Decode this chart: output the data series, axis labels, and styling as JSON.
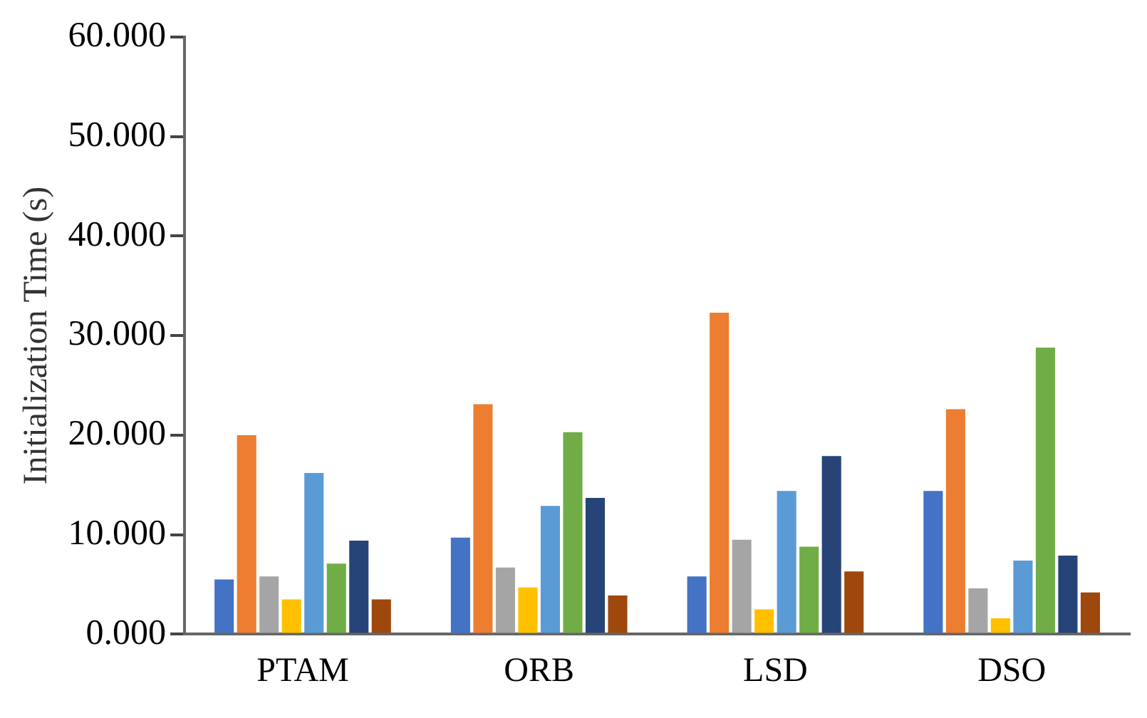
{
  "chart_data": {
    "type": "bar",
    "ylabel": "Initialization Time (s)",
    "categories": [
      "PTAM",
      "ORB",
      "LSD",
      "DSO"
    ],
    "series": [
      {
        "color": "#4472c4",
        "values": [
          5.5,
          9.7,
          5.8,
          14.4
        ]
      },
      {
        "color": "#ed7d31",
        "values": [
          20.0,
          23.1,
          32.3,
          22.6
        ]
      },
      {
        "color": "#a5a5a5",
        "values": [
          5.8,
          6.7,
          9.5,
          4.6
        ]
      },
      {
        "color": "#ffc000",
        "values": [
          3.5,
          4.7,
          2.5,
          1.6
        ]
      },
      {
        "color": "#5b9bd5",
        "values": [
          16.2,
          12.9,
          14.4,
          7.4
        ]
      },
      {
        "color": "#70ad47",
        "values": [
          7.1,
          20.3,
          8.8,
          28.8
        ]
      },
      {
        "color": "#264478",
        "values": [
          9.4,
          13.7,
          17.9,
          7.9
        ]
      },
      {
        "color": "#9e480e",
        "values": [
          3.5,
          3.9,
          6.3,
          4.2
        ]
      }
    ],
    "ylim": [
      0,
      60
    ],
    "yticks": [
      {
        "value": 0,
        "label": "0.000"
      },
      {
        "value": 10,
        "label": "10.000"
      },
      {
        "value": 20,
        "label": "20.000"
      },
      {
        "value": 30,
        "label": "30.000"
      },
      {
        "value": 40,
        "label": "40.000"
      },
      {
        "value": 50,
        "label": "50.000"
      },
      {
        "value": 60,
        "label": "60.000"
      }
    ],
    "grid": false,
    "legend": false
  }
}
